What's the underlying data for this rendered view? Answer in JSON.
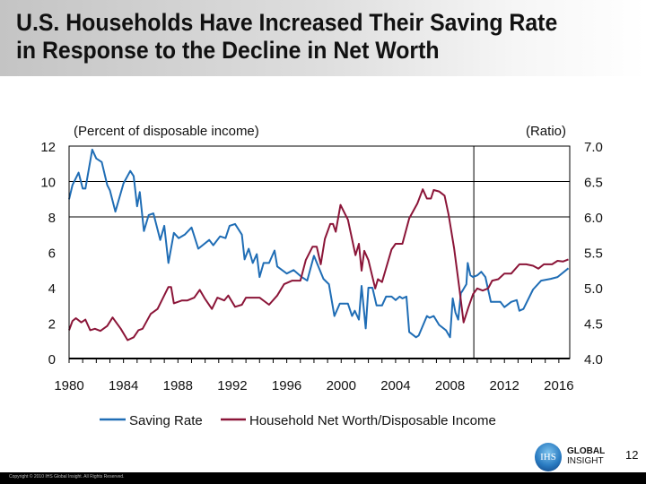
{
  "header": {
    "title_line1": "U.S. Households Have Increased Their Saving Rate",
    "title_line2": "in Response to the Decline in Net Worth"
  },
  "chart_data": {
    "type": "line",
    "title": "U.S. Households Have Increased Their Saving Rate in Response to the Decline in Net Worth",
    "left_axis_label": "(Percent of disposable income)",
    "right_axis_label": "(Ratio)",
    "xlim": [
      1980,
      2016.8
    ],
    "ylim_left": [
      0,
      12
    ],
    "ylim_right": [
      4.0,
      7.0
    ],
    "x_ticks": [
      "1980",
      "1984",
      "1988",
      "1992",
      "1996",
      "2000",
      "2004",
      "2008",
      "2012",
      "2016"
    ],
    "y_ticks_left": [
      "0",
      "2",
      "4",
      "6",
      "8",
      "10",
      "12"
    ],
    "y_ticks_right": [
      "4.0",
      "4.5",
      "5.0",
      "5.5",
      "6.0",
      "6.5",
      "7.0"
    ],
    "gridlines_left": [
      8,
      10
    ],
    "forecast_divider_x": 2009.75,
    "legend_position": "bottom",
    "series": [
      {
        "name": "Saving Rate",
        "axis": "left",
        "color": "#1f6db5",
        "x": [
          1980.0,
          1980.25,
          1980.7,
          1981.0,
          1981.2,
          1981.7,
          1982.0,
          1982.4,
          1982.8,
          1983.0,
          1983.4,
          1984.0,
          1984.5,
          1984.75,
          1985.0,
          1985.2,
          1985.5,
          1985.85,
          1986.2,
          1986.7,
          1987.0,
          1987.3,
          1987.7,
          1988.05,
          1988.5,
          1989.0,
          1989.5,
          1990.3,
          1990.6,
          1991.1,
          1991.5,
          1991.8,
          1992.2,
          1992.7,
          1992.9,
          1993.2,
          1993.5,
          1993.8,
          1994.0,
          1994.3,
          1994.7,
          1995.1,
          1995.3,
          1996.0,
          1996.5,
          1997.1,
          1997.5,
          1998.0,
          1998.7,
          1999.1,
          1999.5,
          1999.9,
          2000.5,
          2000.8,
          2001.0,
          2001.3,
          2001.5,
          2001.8,
          2002.0,
          2002.3,
          2002.6,
          2003.0,
          2003.3,
          2003.7,
          2004.0,
          2004.3,
          2004.5,
          2004.8,
          2005.0,
          2005.5,
          2005.7,
          2006.3,
          2006.5,
          2006.8,
          2007.2,
          2007.7,
          2008.0,
          2008.2,
          2008.4,
          2008.6,
          2008.8,
          2008.9,
          2009.2,
          2009.3,
          2009.5,
          2009.7,
          2010.0,
          2010.3,
          2010.6,
          2011.0,
          2011.7,
          2012.0,
          2012.5,
          2012.9,
          2013.1,
          2013.4,
          2014.1,
          2014.7,
          2015.4,
          2015.9,
          2016.7
        ],
        "values": [
          9.0,
          9.8,
          10.5,
          9.6,
          9.6,
          11.8,
          11.3,
          11.1,
          9.8,
          9.5,
          8.3,
          9.9,
          10.6,
          10.3,
          8.6,
          9.4,
          7.2,
          8.1,
          8.2,
          6.7,
          7.5,
          5.4,
          7.1,
          6.8,
          7.0,
          7.4,
          6.2,
          6.7,
          6.4,
          6.9,
          6.8,
          7.5,
          7.6,
          7.0,
          5.6,
          6.2,
          5.4,
          5.9,
          4.6,
          5.4,
          5.4,
          6.1,
          5.2,
          4.8,
          5.0,
          4.6,
          4.4,
          5.8,
          4.5,
          4.2,
          2.4,
          3.1,
          3.1,
          2.4,
          2.7,
          2.2,
          4.1,
          1.7,
          4.0,
          4.0,
          3.0,
          3.0,
          3.5,
          3.5,
          3.3,
          3.5,
          3.4,
          3.5,
          1.5,
          1.2,
          1.3,
          2.4,
          2.3,
          2.4,
          1.9,
          1.6,
          1.2,
          3.4,
          2.6,
          2.2,
          3.7,
          3.8,
          4.2,
          5.4,
          4.7,
          4.6,
          4.7,
          4.9,
          4.6,
          3.2,
          3.2,
          2.9,
          3.2,
          3.3,
          2.7,
          2.8,
          3.9,
          4.4,
          4.5,
          4.6,
          5.1
        ]
      },
      {
        "name": "Household Net Worth/Disposable Income",
        "axis": "right",
        "color": "#8b1538",
        "x": [
          1980.0,
          1980.25,
          1980.5,
          1980.9,
          1981.2,
          1981.55,
          1981.9,
          1982.3,
          1982.8,
          1983.2,
          1983.8,
          1984.3,
          1984.75,
          1985.1,
          1985.4,
          1986.0,
          1986.5,
          1987.3,
          1987.5,
          1987.7,
          1988.3,
          1988.7,
          1989.2,
          1989.6,
          1990.0,
          1990.5,
          1990.9,
          1991.4,
          1991.7,
          1992.2,
          1992.7,
          1993.0,
          1993.6,
          1994.0,
          1994.7,
          1995.3,
          1995.8,
          1996.4,
          1997.0,
          1997.4,
          1997.9,
          1998.2,
          1998.5,
          1998.8,
          1999.2,
          1999.4,
          1999.6,
          1999.95,
          2000.5,
          2001.05,
          2001.3,
          2001.5,
          2001.7,
          2002.0,
          2002.5,
          2002.7,
          2003.0,
          2003.25,
          2003.7,
          2004.0,
          2004.5,
          2005.0,
          2005.6,
          2006.0,
          2006.3,
          2006.6,
          2006.8,
          2007.2,
          2007.6,
          2007.9,
          2008.3,
          2008.7,
          2009.0,
          2009.35,
          2009.7,
          2010.0,
          2010.4,
          2010.8,
          2011.1,
          2011.55,
          2012.0,
          2012.5,
          2013.1,
          2013.6,
          2014.1,
          2014.5,
          2014.9,
          2015.5,
          2015.9,
          2016.3,
          2016.7
        ],
        "values": [
          4.4,
          4.53,
          4.57,
          4.51,
          4.55,
          4.4,
          4.42,
          4.39,
          4.46,
          4.58,
          4.42,
          4.26,
          4.3,
          4.4,
          4.42,
          4.63,
          4.7,
          5.01,
          5.01,
          4.78,
          4.82,
          4.82,
          4.86,
          4.97,
          4.84,
          4.7,
          4.86,
          4.82,
          4.89,
          4.73,
          4.76,
          4.86,
          4.86,
          4.86,
          4.76,
          4.89,
          5.05,
          5.1,
          5.1,
          5.39,
          5.58,
          5.58,
          5.33,
          5.69,
          5.9,
          5.9,
          5.79,
          6.17,
          5.96,
          5.46,
          5.62,
          5.24,
          5.52,
          5.39,
          4.99,
          5.12,
          5.08,
          5.24,
          5.54,
          5.62,
          5.62,
          5.98,
          6.19,
          6.39,
          6.26,
          6.26,
          6.38,
          6.36,
          6.3,
          6.03,
          5.56,
          4.97,
          4.51,
          4.72,
          4.91,
          4.99,
          4.96,
          4.99,
          5.1,
          5.12,
          5.2,
          5.2,
          5.33,
          5.33,
          5.31,
          5.27,
          5.33,
          5.33,
          5.38,
          5.37,
          5.4
        ]
      }
    ]
  },
  "footer": {
    "page_number": "12",
    "copyright": "Copyright © 2010 IHS Global Insight. All Rights Reserved.",
    "logo_mark": "IHS",
    "logo_line1": "GLOBAL",
    "logo_line2": "INSIGHT"
  }
}
